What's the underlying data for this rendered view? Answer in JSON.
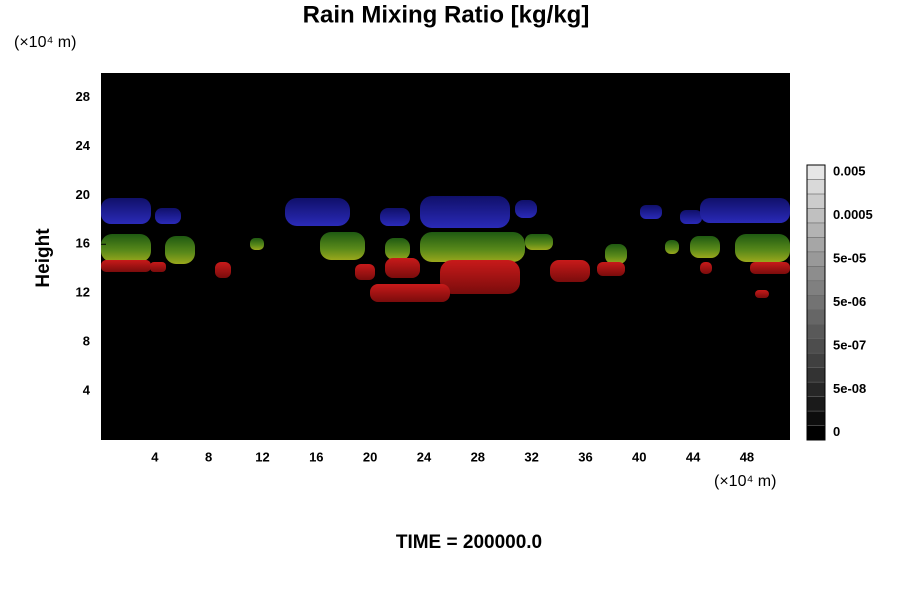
{
  "chart_data": {
    "type": "field",
    "title": "Rain Mixing Ratio [kg/kg]",
    "ylabel": "Height",
    "xunit": "(×10⁴ m)",
    "yunit": "(×10⁴ m)",
    "footer": "TIME = 200000.0",
    "xlim": [
      0,
      51.2
    ],
    "xticks": [
      4,
      8,
      12,
      16,
      20,
      24,
      28,
      32,
      36,
      40,
      44,
      48
    ],
    "ylim": [
      0,
      30
    ],
    "yticks": [
      4,
      8,
      12,
      16,
      20,
      24,
      28
    ],
    "colorbar": {
      "ticks": [
        0,
        {
          "value": 5e-08,
          "label": "5e-08"
        },
        {
          "value": 5e-07,
          "label": "5e-07"
        },
        {
          "value": 5e-06,
          "label": "5e-06"
        },
        {
          "value": 5e-05,
          "label": "5e-05"
        },
        0.0005,
        0.005
      ]
    }
  }
}
